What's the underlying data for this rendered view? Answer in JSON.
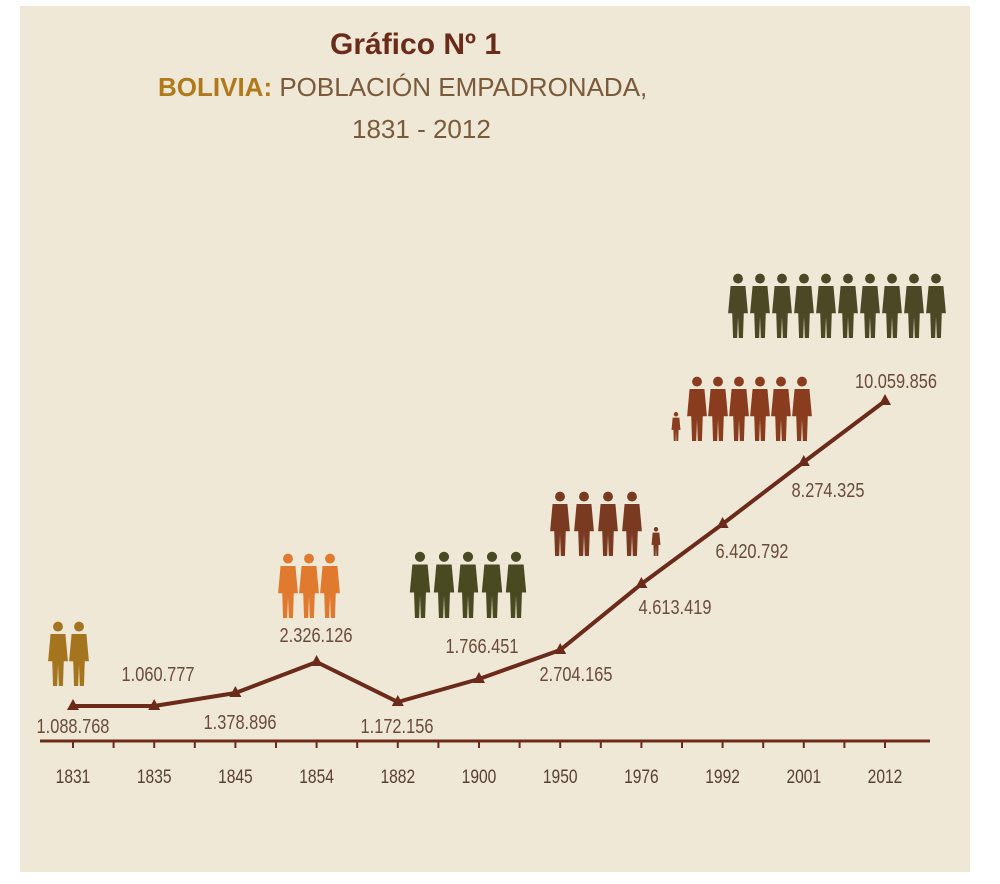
{
  "title": {
    "main": "Gráfico Nº 1",
    "subtitle_bold": "BOLIVIA:",
    "subtitle_rest": " POBLACIÓN EMPADRONADA,",
    "years": "1831 - 2012"
  },
  "colors": {
    "background": "#efe8d6",
    "line": "#6b2a1a",
    "label": "#6b4a3a",
    "axis_label": "#5a4030",
    "figure_gold": "#a5741e",
    "figure_orange": "#e07a2e",
    "figure_olive": "#4a4a22",
    "figure_brown": "#7a3a22",
    "figure_rust": "#8a3d1e",
    "figure_dark_olive": "#4c4826"
  },
  "chart_data": {
    "type": "line",
    "categories": [
      "1831",
      "1835",
      "1845",
      "1854",
      "1882",
      "1900",
      "1950",
      "1976",
      "1992",
      "2001",
      "2012"
    ],
    "values": [
      1088768,
      1060777,
      1378896,
      2326126,
      1172156,
      1766451,
      2704165,
      4613419,
      6420792,
      8274325,
      10059856
    ],
    "data_labels": [
      "1.088.768",
      "1.060.777",
      "1.378.896",
      "2.326.126",
      "1.172.156",
      "1.766.451",
      "2.704.165",
      "4.613.419",
      "6.420.792",
      "8.274.325",
      "10.059.856"
    ],
    "title": "Gráfico Nº 1",
    "subtitle": "BOLIVIA: POBLACIÓN EMPADRONADA, 1831 - 2012",
    "xlabel": "",
    "ylabel": "",
    "grid": false,
    "legend": "none",
    "marker": "triangle",
    "decorations": [
      {
        "group": "people-1831",
        "year": "1831",
        "count": 2,
        "color": "figure_gold",
        "icon": "person-silhouette-icon"
      },
      {
        "group": "people-1854",
        "year": "1854",
        "count": 3,
        "color": "figure_orange",
        "icon": "person-silhouette-icon"
      },
      {
        "group": "people-1900",
        "year": "1900",
        "count": 5,
        "color": "figure_olive",
        "icon": "person-silhouette-icon"
      },
      {
        "group": "people-1976",
        "year": "1976",
        "count": 5,
        "color": "figure_brown",
        "icon": "person-silhouette-icon"
      },
      {
        "group": "people-1992",
        "year": "1992",
        "count": 7,
        "color": "figure_rust",
        "icon": "person-silhouette-icon"
      },
      {
        "group": "people-2012",
        "year": "2012",
        "count": 10,
        "color": "figure_dark_olive",
        "icon": "person-silhouette-icon"
      }
    ]
  }
}
